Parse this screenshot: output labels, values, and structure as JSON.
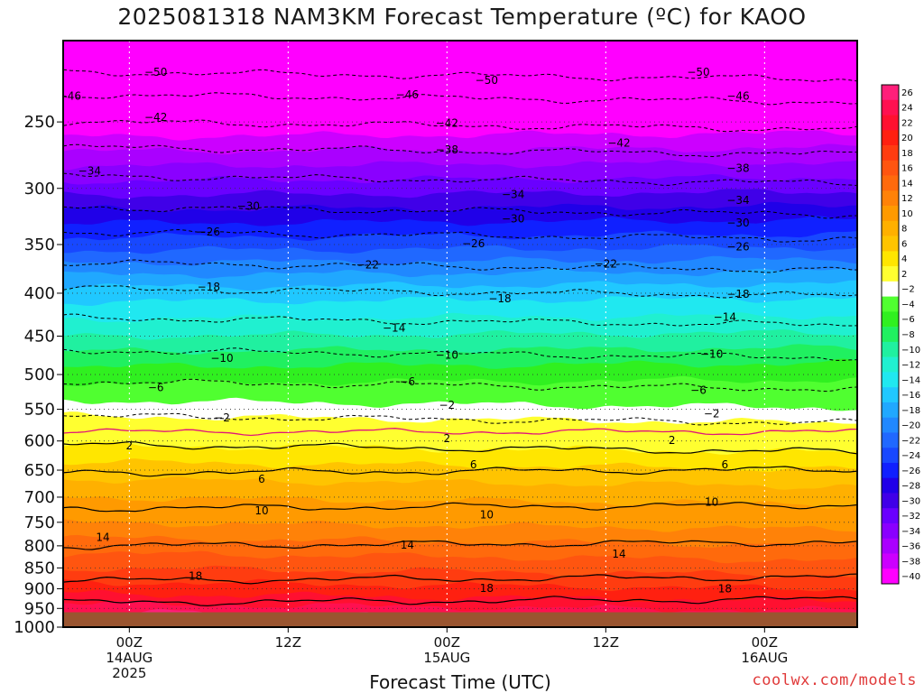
{
  "chart_data": {
    "type": "heatmap",
    "title": "2025081318 NAM3KM Forecast Temperature (ºC) for KAOO",
    "xlabel": "Forecast Time (UTC)",
    "ylabel": "",
    "credit": "coolwx.com/models",
    "y_axis": {
      "scale": "log-pressure",
      "inverted": true,
      "range": [
        1000,
        200
      ],
      "ticks": [
        250,
        300,
        350,
        400,
        450,
        500,
        550,
        600,
        650,
        700,
        750,
        800,
        850,
        900,
        950,
        1000
      ]
    },
    "x_axis": {
      "range_hours": [
        -5,
        55
      ],
      "ticks": [
        {
          "hour": 0,
          "l1": "00Z",
          "l2": "14AUG",
          "l3": "2025"
        },
        {
          "hour": 12,
          "l1": "12Z",
          "l2": "",
          "l3": ""
        },
        {
          "hour": 24,
          "l1": "00Z",
          "l2": "15AUG",
          "l3": ""
        },
        {
          "hour": 36,
          "l1": "12Z",
          "l2": "",
          "l3": ""
        },
        {
          "hour": 48,
          "l1": "00Z",
          "l2": "16AUG",
          "l3": ""
        }
      ]
    },
    "surface_pressure": 960,
    "grid": true,
    "colorbar": {
      "placement": "right",
      "levels": [
        26,
        24,
        22,
        20,
        18,
        16,
        14,
        12,
        10,
        8,
        6,
        4,
        2,
        -2,
        -4,
        -6,
        -8,
        -10,
        -12,
        -14,
        -16,
        -18,
        -20,
        -22,
        -24,
        -26,
        -28,
        -30,
        -32,
        -34,
        -36,
        -38,
        -40
      ],
      "labels": [
        "26",
        "24",
        "22",
        "20",
        "18",
        "16",
        "14",
        "12",
        "10",
        "8",
        "6",
        "4",
        "2",
        "−2",
        "−4",
        "−6",
        "−8",
        "−10",
        "−12",
        "−14",
        "−16",
        "−18",
        "−20",
        "−22",
        "−24",
        "−26",
        "−28",
        "−30",
        "−32",
        "−34",
        "−36",
        "−38",
        "−40"
      ],
      "colors": [
        "#ff1f7a",
        "#ff1050",
        "#ff1030",
        "#ff2010",
        "#ff3c10",
        "#ff5510",
        "#ff6a0c",
        "#ff8208",
        "#ff9a00",
        "#ffb000",
        "#ffc400",
        "#ffe600",
        "#ffff30",
        "#ffffff",
        "#50ff30",
        "#30f020",
        "#20f060",
        "#20f0a0",
        "#20f0d0",
        "#20e8f0",
        "#20c8ff",
        "#20a8ff",
        "#2088ff",
        "#2068ff",
        "#1848ff",
        "#1020ff",
        "#2000e8",
        "#4000e8",
        "#6a00ff",
        "#8a00ff",
        "#aa00ff",
        "#cc00ff",
        "#ff00ff"
      ]
    },
    "temperature_profile": [
      {
        "p": 1000,
        "t": 26
      },
      {
        "p": 960,
        "t": 24
      },
      {
        "p": 950,
        "t": 23
      },
      {
        "p": 900,
        "t": 19
      },
      {
        "p": 850,
        "t": 16
      },
      {
        "p": 800,
        "t": 13
      },
      {
        "p": 750,
        "t": 10
      },
      {
        "p": 700,
        "t": 8
      },
      {
        "p": 650,
        "t": 5
      },
      {
        "p": 600,
        "t": 1.5
      },
      {
        "p": 570,
        "t": -1
      },
      {
        "p": 550,
        "t": -3
      },
      {
        "p": 500,
        "t": -7
      },
      {
        "p": 450,
        "t": -12
      },
      {
        "p": 400,
        "t": -17
      },
      {
        "p": 350,
        "t": -25
      },
      {
        "p": 300,
        "t": -33
      },
      {
        "p": 250,
        "t": -42
      },
      {
        "p": 200,
        "t": -52
      }
    ],
    "contours": [
      {
        "t": -50,
        "p": 218,
        "dashed": true
      },
      {
        "t": -46,
        "p": 232,
        "dashed": true
      },
      {
        "t": -42,
        "p": 250,
        "dashed": true
      },
      {
        "t": -38,
        "p": 268,
        "dashed": true
      },
      {
        "t": -34,
        "p": 290,
        "dashed": true
      },
      {
        "t": -30,
        "p": 316,
        "dashed": true
      },
      {
        "t": -26,
        "p": 338,
        "dashed": true
      },
      {
        "t": -22,
        "p": 368,
        "dashed": true
      },
      {
        "t": -18,
        "p": 395,
        "dashed": true
      },
      {
        "t": -14,
        "p": 428,
        "dashed": true
      },
      {
        "t": -10,
        "p": 468,
        "dashed": true
      },
      {
        "t": -6,
        "p": 510,
        "dashed": true
      },
      {
        "t": -2,
        "p": 560,
        "dashed": true
      },
      {
        "t": 2,
        "p": 606,
        "dashed": false
      },
      {
        "t": 6,
        "p": 655,
        "dashed": false
      },
      {
        "t": 10,
        "p": 722,
        "dashed": false
      },
      {
        "t": 14,
        "p": 800,
        "dashed": false
      },
      {
        "t": 18,
        "p": 880,
        "dashed": false
      },
      {
        "t": 22,
        "p": 935,
        "dashed": false
      }
    ],
    "freezing_level_p": 585,
    "contour_labels": [
      {
        "text": "−50",
        "hour": 2,
        "p": 218
      },
      {
        "text": "−50",
        "hour": 27,
        "p": 223
      },
      {
        "text": "−50",
        "hour": 43,
        "p": 218
      },
      {
        "text": "−46",
        "hour": -4.5,
        "p": 233
      },
      {
        "text": "−46",
        "hour": 21,
        "p": 232
      },
      {
        "text": "−46",
        "hour": 46,
        "p": 233
      },
      {
        "text": "−42",
        "hour": 2,
        "p": 247
      },
      {
        "text": "−42",
        "hour": 24,
        "p": 251
      },
      {
        "text": "−42",
        "hour": 37,
        "p": 265
      },
      {
        "text": "−38",
        "hour": 24,
        "p": 270
      },
      {
        "text": "−38",
        "hour": 46,
        "p": 284
      },
      {
        "text": "−34",
        "hour": -3,
        "p": 286
      },
      {
        "text": "−34",
        "hour": 29,
        "p": 305
      },
      {
        "text": "−34",
        "hour": 46,
        "p": 310
      },
      {
        "text": "−30",
        "hour": 9,
        "p": 315
      },
      {
        "text": "−30",
        "hour": 29,
        "p": 326
      },
      {
        "text": "−30",
        "hour": 46,
        "p": 330
      },
      {
        "text": "−26",
        "hour": 6,
        "p": 338
      },
      {
        "text": "−26",
        "hour": 26,
        "p": 349
      },
      {
        "text": "−26",
        "hour": 46,
        "p": 352
      },
      {
        "text": "−22",
        "hour": 18,
        "p": 370
      },
      {
        "text": "−22",
        "hour": 36,
        "p": 369
      },
      {
        "text": "−18",
        "hour": 6,
        "p": 393
      },
      {
        "text": "−18",
        "hour": 28,
        "p": 406
      },
      {
        "text": "−18",
        "hour": 46,
        "p": 401
      },
      {
        "text": "−14",
        "hour": 20,
        "p": 440
      },
      {
        "text": "−14",
        "hour": 45,
        "p": 427
      },
      {
        "text": "−10",
        "hour": 7,
        "p": 478
      },
      {
        "text": "−10",
        "hour": 24,
        "p": 474
      },
      {
        "text": "−10",
        "hour": 44,
        "p": 473
      },
      {
        "text": "−6",
        "hour": 2,
        "p": 518
      },
      {
        "text": "−6",
        "hour": 21,
        "p": 510
      },
      {
        "text": "−6",
        "hour": 43,
        "p": 522
      },
      {
        "text": "−2",
        "hour": 7,
        "p": 563
      },
      {
        "text": "−2",
        "hour": 24,
        "p": 544
      },
      {
        "text": "−2",
        "hour": 44,
        "p": 557
      },
      {
        "text": "2",
        "hour": 0,
        "p": 608
      },
      {
        "text": "2",
        "hour": 24,
        "p": 596
      },
      {
        "text": "2",
        "hour": 41,
        "p": 599
      },
      {
        "text": "6",
        "hour": 10,
        "p": 666
      },
      {
        "text": "6",
        "hour": 26,
        "p": 640
      },
      {
        "text": "6",
        "hour": 45,
        "p": 640
      },
      {
        "text": "10",
        "hour": 10,
        "p": 727
      },
      {
        "text": "10",
        "hour": 27,
        "p": 735
      },
      {
        "text": "10",
        "hour": 44,
        "p": 710
      },
      {
        "text": "14",
        "hour": -2,
        "p": 782
      },
      {
        "text": "14",
        "hour": 21,
        "p": 798
      },
      {
        "text": "14",
        "hour": 37,
        "p": 818
      },
      {
        "text": "18",
        "hour": 5,
        "p": 869
      },
      {
        "text": "18",
        "hour": 27,
        "p": 899
      },
      {
        "text": "18",
        "hour": 45,
        "p": 900
      }
    ]
  }
}
